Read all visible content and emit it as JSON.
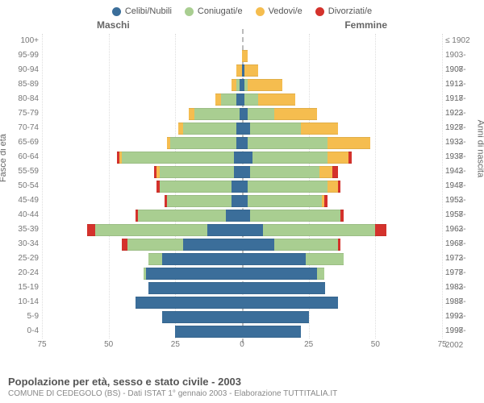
{
  "legend": [
    {
      "label": "Celibi/Nubili",
      "color": "#3b6e9a"
    },
    {
      "label": "Coniugati/e",
      "color": "#a9ce91"
    },
    {
      "label": "Vedovi/e",
      "color": "#f5bd4f"
    },
    {
      "label": "Divorziati/e",
      "color": "#d4322c"
    }
  ],
  "header": {
    "left": "Maschi",
    "right": "Femmine"
  },
  "axis_title": {
    "left": "Fasce di età",
    "right": "Anni di nascita"
  },
  "x": {
    "max": 75,
    "ticks": [
      75,
      50,
      25,
      0,
      25,
      50,
      75
    ]
  },
  "age_groups": [
    "100+",
    "95-99",
    "90-94",
    "85-89",
    "80-84",
    "75-79",
    "70-74",
    "65-69",
    "60-64",
    "55-59",
    "50-54",
    "45-49",
    "40-44",
    "35-39",
    "30-34",
    "25-29",
    "20-24",
    "15-19",
    "10-14",
    "5-9",
    "0-4"
  ],
  "birth_years": [
    "≤ 1902",
    "1903-1907",
    "1908-1912",
    "1913-1917",
    "1918-1922",
    "1923-1927",
    "1928-1932",
    "1933-1937",
    "1938-1942",
    "1943-1947",
    "1948-1952",
    "1953-1957",
    "1958-1962",
    "1963-1967",
    "1968-1972",
    "1973-1977",
    "1978-1982",
    "1983-1987",
    "1988-1992",
    "1993-1997",
    "1998-2002"
  ],
  "data": {
    "100+": {
      "m": [
        0,
        0,
        0,
        0
      ],
      "f": [
        0,
        0,
        0,
        0
      ]
    },
    "95-99": {
      "m": [
        0,
        0,
        0,
        0
      ],
      "f": [
        0,
        0,
        2,
        0
      ]
    },
    "90-94": {
      "m": [
        0,
        0,
        2,
        0
      ],
      "f": [
        1,
        0,
        5,
        0
      ]
    },
    "85-89": {
      "m": [
        1,
        1,
        2,
        0
      ],
      "f": [
        1,
        1,
        13,
        0
      ]
    },
    "80-84": {
      "m": [
        2,
        6,
        2,
        0
      ],
      "f": [
        1,
        5,
        14,
        0
      ]
    },
    "75-79": {
      "m": [
        1,
        17,
        2,
        0
      ],
      "f": [
        2,
        10,
        16,
        0
      ]
    },
    "70-74": {
      "m": [
        2,
        20,
        2,
        0
      ],
      "f": [
        3,
        19,
        14,
        0
      ]
    },
    "65-69": {
      "m": [
        2,
        25,
        1,
        0
      ],
      "f": [
        2,
        30,
        16,
        0
      ]
    },
    "60-64": {
      "m": [
        3,
        42,
        1,
        1
      ],
      "f": [
        4,
        28,
        8,
        1
      ]
    },
    "55-59": {
      "m": [
        3,
        28,
        1,
        1
      ],
      "f": [
        3,
        26,
        5,
        2
      ]
    },
    "50-54": {
      "m": [
        4,
        27,
        0,
        1
      ],
      "f": [
        2,
        30,
        4,
        1
      ]
    },
    "45-49": {
      "m": [
        4,
        24,
        0,
        1
      ],
      "f": [
        2,
        28,
        1,
        1
      ]
    },
    "40-44": {
      "m": [
        6,
        33,
        0,
        1
      ],
      "f": [
        3,
        34,
        0,
        1
      ]
    },
    "35-39": {
      "m": [
        13,
        42,
        0,
        3
      ],
      "f": [
        8,
        42,
        0,
        4
      ]
    },
    "30-34": {
      "m": [
        22,
        21,
        0,
        2
      ],
      "f": [
        12,
        24,
        0,
        1
      ]
    },
    "25-29": {
      "m": [
        30,
        5,
        0,
        0
      ],
      "f": [
        24,
        14,
        0,
        0
      ]
    },
    "20-24": {
      "m": [
        36,
        1,
        0,
        0
      ],
      "f": [
        28,
        3,
        0,
        0
      ]
    },
    "15-19": {
      "m": [
        35,
        0,
        0,
        0
      ],
      "f": [
        31,
        0,
        0,
        0
      ]
    },
    "10-14": {
      "m": [
        40,
        0,
        0,
        0
      ],
      "f": [
        36,
        0,
        0,
        0
      ]
    },
    "5-9": {
      "m": [
        30,
        0,
        0,
        0
      ],
      "f": [
        25,
        0,
        0,
        0
      ]
    },
    "0-4": {
      "m": [
        25,
        0,
        0,
        0
      ],
      "f": [
        22,
        0,
        0,
        0
      ]
    }
  },
  "footer": {
    "title": "Popolazione per età, sesso e stato civile - 2003",
    "sub": "COMUNE DI CEDEGOLO (BS) - Dati ISTAT 1° gennaio 2003 - Elaborazione TUTTITALIA.IT"
  },
  "colors": [
    "#3b6e9a",
    "#a9ce91",
    "#f5bd4f",
    "#d4322c"
  ],
  "plot": {
    "background": "#ffffff",
    "text_color": "#666666",
    "grid_color": "#dddddd"
  }
}
